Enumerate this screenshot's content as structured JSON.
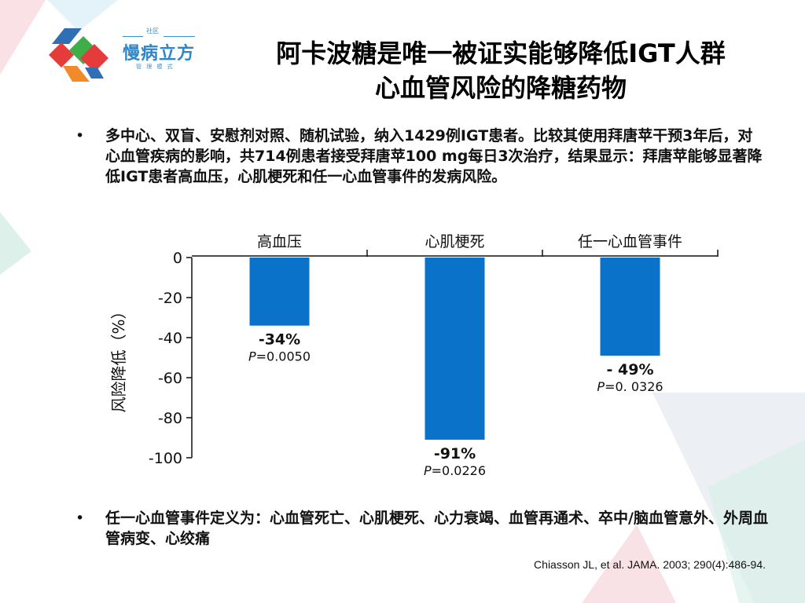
{
  "logo": {
    "top_text": "社区",
    "name": "慢病立方",
    "subtitle": "管 理 模 式"
  },
  "title": {
    "line1": "阿卡波糖是唯一被证实能够降低IGT人群",
    "line2": "心血管风险的降糖药物"
  },
  "bullets": {
    "marker": "•",
    "first": "多中心、双盲、安慰剂对照、随机试验，纳入1429例IGT患者。比较其使用拜唐苹干预3年后，对心血管疾病的影响，共714例患者接受拜唐苹100 mg每日3次治疗，结果显示：拜唐苹能够显著降低IGT患者高血压，心肌梗死和任一心血管事件的发病风险。",
    "second": "任一心血管事件定义为：心血管死亡、心肌梗死、心力衰竭、血管再通术、卒中/脑血管意外、外周血管病变、心绞痛"
  },
  "citation": "Chiasson JL, et al. JAMA. 2003; 290(4):486-94.",
  "colors": {
    "bar": "#0b72c9",
    "text": "#111111",
    "logo_blue": "#2e86c8"
  },
  "chart_data": {
    "type": "bar",
    "categories": [
      "高血压",
      "心肌梗死",
      "任一心血管事件"
    ],
    "values": [
      -34,
      -91,
      -49
    ],
    "data_labels": [
      "-34%",
      "-91%",
      "- 49%"
    ],
    "p_prefix": "P",
    "p_values": [
      "=0.0050",
      "=0.0226",
      "=0. 0326"
    ],
    "ylabel": "风险降低（%）",
    "ylim": [
      -100,
      0
    ],
    "yticks": [
      0,
      -20,
      -40,
      -60,
      -80,
      -100
    ],
    "category_axis_position": "top",
    "grid": false,
    "legend": "none"
  }
}
